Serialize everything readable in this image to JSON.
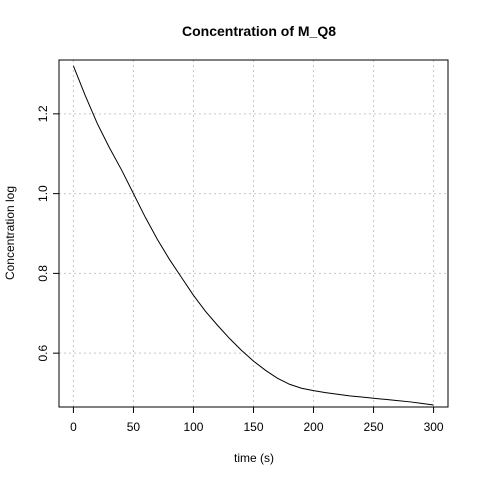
{
  "chart_data": {
    "type": "line",
    "title": "Concentration of M_Q8",
    "xlabel": "time (s)",
    "ylabel": "Concentration log",
    "xlim": [
      -12,
      312
    ],
    "ylim": [
      0.465,
      1.335
    ],
    "xticks": [
      0,
      50,
      100,
      150,
      200,
      250,
      300
    ],
    "yticks": [
      0.6,
      0.8,
      1.0,
      1.2
    ],
    "xtick_labels": [
      "0",
      "50",
      "100",
      "150",
      "200",
      "250",
      "300"
    ],
    "ytick_labels": [
      "0.6",
      "0.8",
      "1.0",
      "1.2"
    ],
    "grid": true,
    "series": [
      {
        "x": [
          0,
          10,
          20,
          30,
          40,
          50,
          60,
          70,
          80,
          90,
          100,
          110,
          120,
          130,
          140,
          150,
          160,
          170,
          180,
          190,
          200,
          210,
          220,
          230,
          240,
          250,
          260,
          270,
          280,
          290,
          300
        ],
        "y": [
          1.32,
          1.245,
          1.175,
          1.115,
          1.06,
          1.0,
          0.94,
          0.885,
          0.835,
          0.79,
          0.745,
          0.705,
          0.67,
          0.637,
          0.607,
          0.58,
          0.557,
          0.537,
          0.522,
          0.512,
          0.506,
          0.501,
          0.497,
          0.493,
          0.49,
          0.487,
          0.484,
          0.481,
          0.478,
          0.474,
          0.47
        ]
      }
    ]
  }
}
